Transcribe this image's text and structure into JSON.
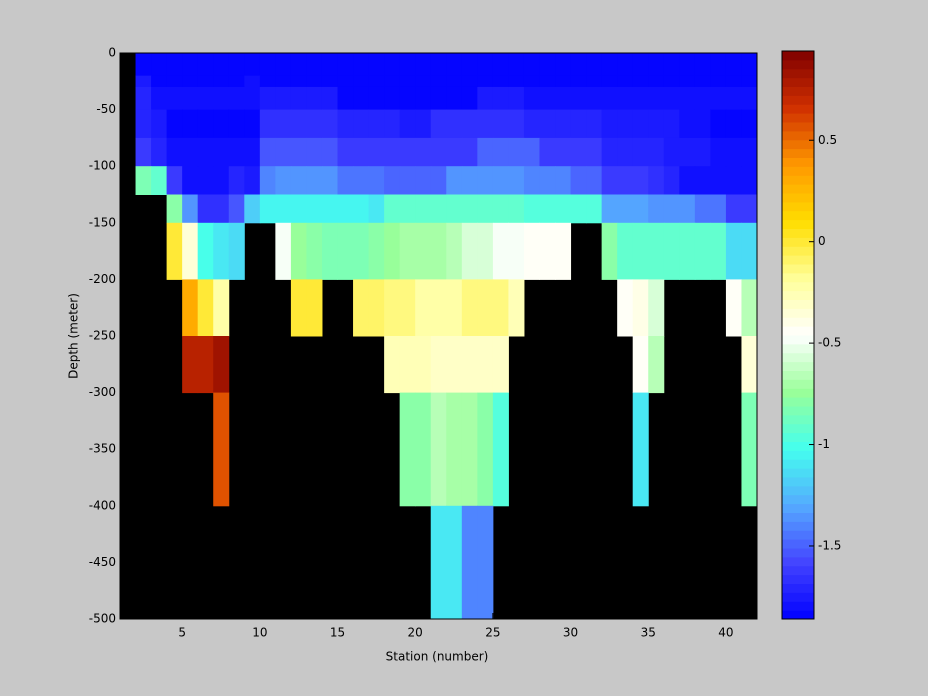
{
  "chart_data": {
    "type": "heatmap",
    "xlabel": "Station (number)",
    "ylabel": "Depth (meter)",
    "x_edges": [
      1,
      2,
      3,
      4,
      5,
      6,
      7,
      8,
      9,
      10,
      11,
      12,
      13,
      14,
      15,
      16,
      17,
      18,
      19,
      20,
      21,
      22,
      23,
      24,
      25,
      26,
      27,
      28,
      29,
      30,
      31,
      32,
      33,
      34,
      35,
      36,
      37,
      38,
      39,
      40,
      41,
      42
    ],
    "y_edges": [
      0,
      -20,
      -30,
      -50,
      -75,
      -100,
      -125,
      -150,
      -200,
      -250,
      -300,
      -400,
      -500
    ],
    "xlim": [
      1,
      42
    ],
    "ylim": [
      -500,
      0
    ],
    "xticks": [
      5,
      10,
      15,
      20,
      25,
      30,
      35,
      40
    ],
    "yticks": [
      0,
      -50,
      -100,
      -150,
      -200,
      -250,
      -300,
      -350,
      -400,
      -450,
      -500
    ],
    "clim": [
      -1.86,
      0.94
    ],
    "colorbar_ticks": [
      0.5,
      0,
      -0.5,
      -1,
      -1.5
    ],
    "colormap": [
      "#0000ff",
      "#4444ff",
      "#55aaff",
      "#44ffee",
      "#99ff99",
      "#ffffff",
      "#ffff99",
      "#ffdd00",
      "#ff9900",
      "#d03000",
      "#800000"
    ],
    "levels": 64,
    "background": "#000000",
    "values": [
      [
        null,
        -1.85,
        -1.85,
        -1.85,
        -1.85,
        -1.85,
        -1.85,
        -1.85,
        -1.85,
        -1.85,
        -1.85,
        -1.85,
        -1.85,
        -1.85,
        -1.85,
        -1.85,
        -1.85,
        -1.85,
        -1.85,
        -1.85,
        -1.85,
        -1.85,
        -1.85,
        -1.85,
        -1.85,
        -1.85,
        -1.85,
        -1.85,
        -1.85,
        -1.85,
        -1.85,
        -1.85,
        -1.85,
        -1.85,
        -1.85,
        -1.85,
        -1.85,
        -1.85,
        -1.85,
        -1.85,
        -1.85
      ],
      [
        null,
        -1.75,
        -1.85,
        -1.85,
        -1.85,
        -1.85,
        -1.85,
        -1.85,
        -1.8,
        -1.85,
        -1.85,
        -1.85,
        -1.85,
        -1.85,
        -1.85,
        -1.85,
        -1.85,
        -1.85,
        -1.85,
        -1.85,
        -1.85,
        -1.85,
        -1.85,
        -1.85,
        -1.85,
        -1.85,
        -1.85,
        -1.85,
        -1.85,
        -1.85,
        -1.85,
        -1.85,
        -1.85,
        -1.85,
        -1.85,
        -1.85,
        -1.85,
        -1.85,
        -1.85,
        -1.85,
        -1.85
      ],
      [
        null,
        -1.7,
        -1.8,
        -1.8,
        -1.8,
        -1.8,
        -1.8,
        -1.8,
        -1.8,
        -1.75,
        -1.75,
        -1.75,
        -1.75,
        -1.75,
        -1.85,
        -1.85,
        -1.85,
        -1.85,
        -1.85,
        -1.85,
        -1.85,
        -1.85,
        -1.85,
        -1.75,
        -1.75,
        -1.75,
        -1.8,
        -1.8,
        -1.8,
        -1.8,
        -1.8,
        -1.8,
        -1.8,
        -1.8,
        -1.8,
        -1.8,
        -1.8,
        -1.8,
        -1.8,
        -1.8,
        -1.8
      ],
      [
        null,
        -1.7,
        -1.75,
        -1.82,
        -1.82,
        -1.82,
        -1.82,
        -1.82,
        -1.82,
        -1.65,
        -1.65,
        -1.65,
        -1.65,
        -1.65,
        -1.7,
        -1.7,
        -1.7,
        -1.7,
        -1.75,
        -1.75,
        -1.65,
        -1.65,
        -1.65,
        -1.65,
        -1.65,
        -1.65,
        -1.7,
        -1.7,
        -1.7,
        -1.7,
        -1.7,
        -1.75,
        -1.75,
        -1.75,
        -1.75,
        -1.75,
        -1.8,
        -1.8,
        -1.85,
        -1.85,
        -1.85
      ],
      [
        null,
        -1.6,
        -1.7,
        -1.8,
        -1.8,
        -1.8,
        -1.8,
        -1.8,
        -1.8,
        -1.55,
        -1.55,
        -1.55,
        -1.55,
        -1.55,
        -1.6,
        -1.6,
        -1.6,
        -1.6,
        -1.6,
        -1.6,
        -1.6,
        -1.6,
        -1.6,
        -1.5,
        -1.5,
        -1.5,
        -1.5,
        -1.6,
        -1.6,
        -1.6,
        -1.6,
        -1.7,
        -1.7,
        -1.7,
        -1.7,
        -1.75,
        -1.75,
        -1.75,
        -1.8,
        -1.8,
        -1.8
      ],
      [
        null,
        -0.85,
        -0.9,
        -1.6,
        -1.8,
        -1.8,
        -1.8,
        -1.7,
        -1.75,
        -1.4,
        -1.35,
        -1.35,
        -1.35,
        -1.35,
        -1.45,
        -1.45,
        -1.45,
        -1.5,
        -1.5,
        -1.5,
        -1.5,
        -1.35,
        -1.35,
        -1.35,
        -1.35,
        -1.35,
        -1.4,
        -1.4,
        -1.4,
        -1.5,
        -1.5,
        -1.6,
        -1.6,
        -1.6,
        -1.65,
        -1.7,
        -1.8,
        -1.8,
        -1.8,
        -1.8,
        -1.8
      ],
      [
        null,
        null,
        null,
        -0.8,
        -1.35,
        -1.65,
        -1.65,
        -1.55,
        -1.2,
        -1.05,
        -1.05,
        -1.05,
        -1.05,
        -1.05,
        -1.05,
        -1.05,
        -1.1,
        -0.9,
        -0.9,
        -0.9,
        -0.9,
        -0.9,
        -0.9,
        -0.9,
        -0.9,
        -0.9,
        -0.95,
        -0.95,
        -0.95,
        -0.95,
        -0.95,
        -1.3,
        -1.3,
        -1.3,
        -1.35,
        -1.35,
        -1.35,
        -1.45,
        -1.45,
        -1.6,
        -1.6
      ],
      [
        null,
        null,
        null,
        0.0,
        -0.35,
        -1.0,
        -1.1,
        -1.15,
        null,
        null,
        -0.5,
        -0.75,
        -0.8,
        -0.85,
        -0.85,
        -0.85,
        -0.8,
        -0.75,
        -0.7,
        -0.7,
        -0.7,
        -0.65,
        -0.55,
        -0.55,
        -0.5,
        -0.5,
        -0.42,
        -0.42,
        -0.42,
        null,
        null,
        -0.8,
        -0.9,
        -0.9,
        -0.9,
        -0.9,
        -0.9,
        -0.9,
        -0.9,
        -1.15,
        -1.15
      ],
      [
        null,
        null,
        null,
        null,
        0.3,
        0.0,
        -0.2,
        null,
        null,
        null,
        null,
        0.0,
        0.0,
        null,
        null,
        -0.1,
        -0.1,
        -0.15,
        -0.15,
        -0.2,
        -0.2,
        -0.2,
        -0.15,
        -0.15,
        -0.15,
        -0.25,
        null,
        null,
        null,
        null,
        null,
        null,
        -0.45,
        -0.4,
        -0.55,
        null,
        null,
        null,
        null,
        -0.45,
        -0.65
      ],
      [
        null,
        null,
        null,
        null,
        0.75,
        0.75,
        0.85,
        null,
        null,
        null,
        null,
        null,
        null,
        null,
        null,
        null,
        null,
        -0.25,
        -0.25,
        -0.25,
        -0.3,
        -0.3,
        -0.3,
        -0.3,
        -0.3,
        null,
        null,
        null,
        null,
        null,
        null,
        null,
        null,
        -0.45,
        -0.65,
        null,
        null,
        null,
        null,
        null,
        -0.35
      ],
      [
        null,
        null,
        null,
        null,
        null,
        null,
        0.55,
        null,
        null,
        null,
        null,
        null,
        null,
        null,
        null,
        null,
        null,
        null,
        -0.8,
        -0.8,
        -0.65,
        -0.7,
        -0.7,
        -0.8,
        -0.95,
        null,
        null,
        null,
        null,
        null,
        null,
        null,
        null,
        -1.1,
        null,
        null,
        null,
        null,
        null,
        null,
        -0.85
      ],
      [
        null,
        null,
        null,
        null,
        null,
        null,
        null,
        null,
        null,
        null,
        null,
        null,
        null,
        null,
        null,
        null,
        null,
        null,
        null,
        null,
        -1.1,
        -1.1,
        -1.4,
        -1.4,
        null,
        null,
        null,
        null,
        null,
        null,
        null,
        null,
        null,
        null,
        null,
        null,
        null,
        null,
        null,
        null,
        null
      ]
    ]
  }
}
